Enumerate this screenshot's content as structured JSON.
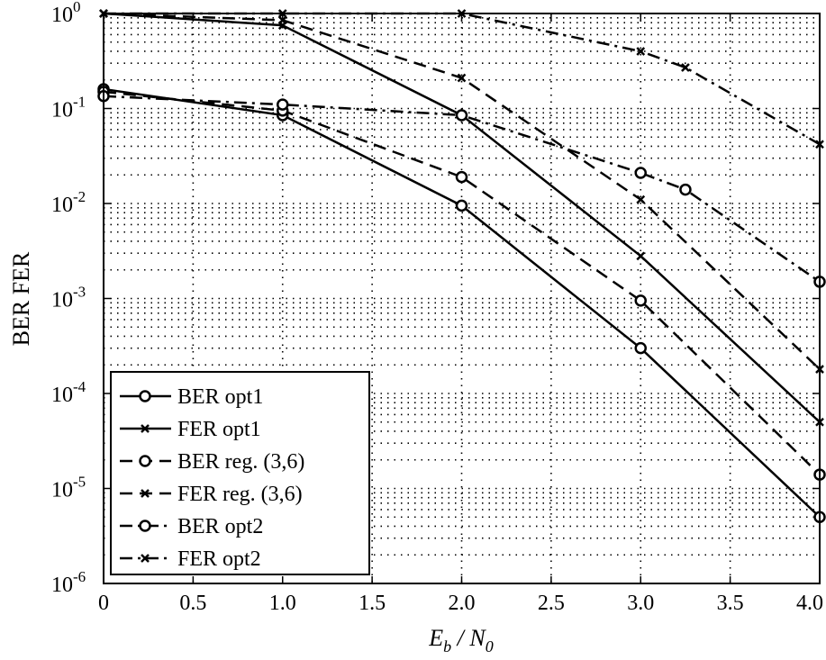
{
  "chart_data": {
    "type": "line",
    "title": "",
    "xlabel": "E_b / N_0",
    "ylabel": "BER FER",
    "xlim": [
      0,
      4
    ],
    "ylim": [
      1e-06,
      1
    ],
    "yscale": "log",
    "grid": true,
    "grid_style": "dotted",
    "legend_position": "bottom-left",
    "x_ticks": [
      "0",
      "0.5",
      "1.0",
      "1.5",
      "2.0",
      "2.5",
      "3.0",
      "3.5",
      "4.0"
    ],
    "y_ticks": [
      {
        "base": "10",
        "exp": "0"
      },
      {
        "base": "10",
        "exp": "-1"
      },
      {
        "base": "10",
        "exp": "-2"
      },
      {
        "base": "10",
        "exp": "-3"
      },
      {
        "base": "10",
        "exp": "-4"
      },
      {
        "base": "10",
        "exp": "-5"
      },
      {
        "base": "10",
        "exp": "-6"
      }
    ],
    "series": [
      {
        "name": "BER opt1",
        "line": "solid",
        "marker": "circle",
        "x": [
          0,
          1.0,
          2.0,
          3.0,
          4.0
        ],
        "y": [
          0.16,
          0.085,
          0.0095,
          0.0003,
          5e-06
        ]
      },
      {
        "name": "FER opt1",
        "line": "solid",
        "marker": "x",
        "x": [
          0,
          1.0,
          2.0,
          3.0,
          4.0
        ],
        "y": [
          1.0,
          0.75,
          0.085,
          0.0028,
          5e-05
        ]
      },
      {
        "name": "BER reg. (3,6)",
        "line": "dashed",
        "marker": "circle",
        "x": [
          0,
          1.0,
          2.0,
          3.0,
          4.0
        ],
        "y": [
          0.15,
          0.095,
          0.019,
          0.00095,
          1.4e-05
        ]
      },
      {
        "name": "FER reg. (3,6)",
        "line": "dashed",
        "marker": "x",
        "x": [
          0,
          1.0,
          2.0,
          3.0,
          4.0
        ],
        "y": [
          1.0,
          0.85,
          0.21,
          0.011,
          0.00018
        ]
      },
      {
        "name": "BER opt2",
        "line": "dashdot",
        "marker": "circle",
        "x": [
          0,
          1.0,
          2.0,
          3.0,
          3.25,
          4.0
        ],
        "y": [
          0.135,
          0.11,
          0.085,
          0.021,
          0.014,
          0.0015
        ]
      },
      {
        "name": "FER opt2",
        "line": "dashdot",
        "marker": "x",
        "x": [
          0,
          1.0,
          2.0,
          3.0,
          3.25,
          4.0
        ],
        "y": [
          1.0,
          1.0,
          1.0,
          0.4,
          0.27,
          0.042
        ]
      }
    ]
  }
}
